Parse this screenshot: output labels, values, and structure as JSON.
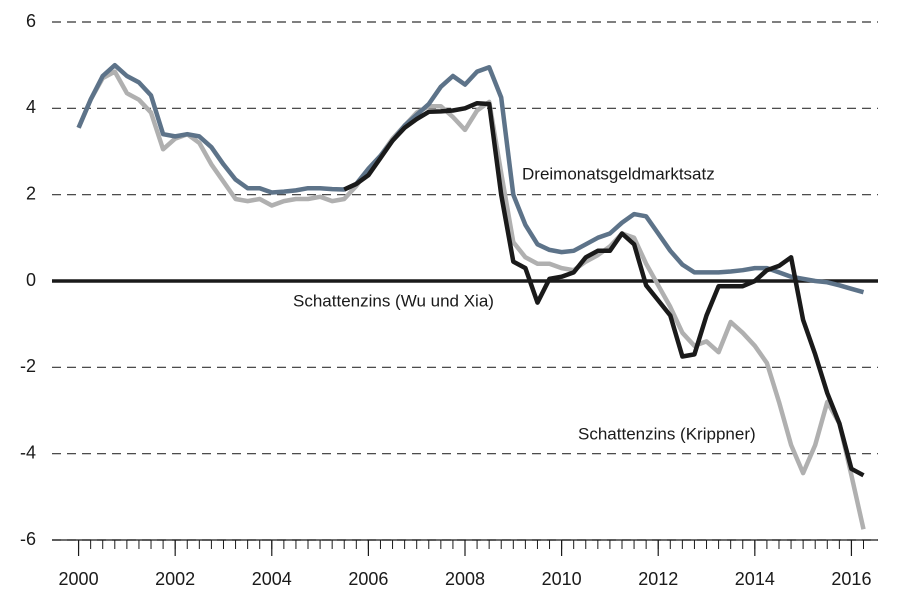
{
  "chart_data": {
    "type": "line",
    "x": [
      2000,
      2000.25,
      2000.5,
      2000.75,
      2001,
      2001.25,
      2001.5,
      2001.75,
      2002,
      2002.25,
      2002.5,
      2002.75,
      2003,
      2003.25,
      2003.5,
      2003.75,
      2004,
      2004.25,
      2004.5,
      2004.75,
      2005,
      2005.25,
      2005.5,
      2005.75,
      2006,
      2006.25,
      2006.5,
      2006.75,
      2007,
      2007.25,
      2007.5,
      2007.75,
      2008,
      2008.25,
      2008.5,
      2008.75,
      2009,
      2009.25,
      2009.5,
      2009.75,
      2010,
      2010.25,
      2010.5,
      2010.75,
      2011,
      2011.25,
      2011.5,
      2011.75,
      2012,
      2012.25,
      2012.5,
      2012.75,
      2013,
      2013.25,
      2013.5,
      2013.75,
      2014,
      2014.25,
      2014.5,
      2014.75,
      2015,
      2015.25,
      2015.5,
      2015.75,
      2016,
      2016.25
    ],
    "series": [
      {
        "name": "Schattenzins (Krippner)",
        "color": "#b0b0b0",
        "values": [
          3.55,
          4.2,
          4.7,
          4.85,
          4.35,
          4.2,
          3.9,
          3.05,
          3.3,
          3.4,
          3.2,
          2.7,
          2.3,
          1.9,
          1.85,
          1.9,
          1.75,
          1.85,
          1.9,
          1.9,
          1.95,
          1.85,
          1.9,
          2.2,
          2.6,
          2.9,
          3.3,
          3.6,
          3.9,
          4.05,
          4.05,
          3.8,
          3.5,
          3.95,
          4.15,
          2.5,
          0.9,
          0.55,
          0.4,
          0.4,
          0.3,
          0.25,
          0.45,
          0.6,
          0.8,
          1.1,
          1.0,
          0.4,
          -0.1,
          -0.6,
          -1.2,
          -1.5,
          -1.4,
          -1.65,
          -0.95,
          -1.2,
          -1.5,
          -1.9,
          -2.8,
          -3.8,
          -4.45,
          -3.8,
          -2.8,
          -3.3,
          -4.5,
          -5.75
        ]
      },
      {
        "name": "Dreimonatsgeldmarktsatz",
        "color": "#5d7389",
        "values": [
          3.55,
          4.2,
          4.75,
          5.0,
          4.75,
          4.6,
          4.3,
          3.4,
          3.35,
          3.4,
          3.35,
          3.1,
          2.7,
          2.35,
          2.15,
          2.15,
          2.05,
          2.07,
          2.1,
          2.15,
          2.15,
          2.13,
          2.12,
          2.25,
          2.6,
          2.9,
          3.25,
          3.6,
          3.85,
          4.1,
          4.5,
          4.75,
          4.55,
          4.85,
          4.95,
          4.25,
          2.0,
          1.3,
          0.85,
          0.72,
          0.67,
          0.7,
          0.85,
          1.0,
          1.1,
          1.35,
          1.55,
          1.5,
          1.1,
          0.7,
          0.38,
          0.2,
          0.2,
          0.2,
          0.22,
          0.25,
          0.3,
          0.3,
          0.2,
          0.1,
          0.05,
          0.0,
          -0.03,
          -0.1,
          -0.18,
          -0.26
        ]
      },
      {
        "name": "Schattenzins (Wu und Xia)",
        "color": "#1a1a1a",
        "values": [
          null,
          null,
          null,
          null,
          null,
          null,
          null,
          null,
          null,
          null,
          null,
          null,
          null,
          null,
          null,
          null,
          null,
          null,
          null,
          null,
          null,
          null,
          2.12,
          2.25,
          2.45,
          2.85,
          3.25,
          3.55,
          3.75,
          3.92,
          3.93,
          3.95,
          4.0,
          4.12,
          4.1,
          2.0,
          0.45,
          0.3,
          -0.5,
          0.05,
          0.1,
          0.2,
          0.55,
          0.7,
          0.7,
          1.1,
          0.85,
          -0.1,
          -0.45,
          -0.8,
          -1.75,
          -1.7,
          -0.8,
          -0.12,
          -0.12,
          -0.12,
          0.0,
          0.25,
          0.35,
          0.55,
          -0.9,
          -1.7,
          -2.6,
          -3.3,
          -4.35,
          -4.5
        ]
      }
    ],
    "xlim": [
      1999.45,
      2016.55
    ],
    "xticks": [
      2000,
      2002,
      2004,
      2006,
      2008,
      2010,
      2012,
      2014,
      2016
    ],
    "ylim": [
      -6,
      6
    ],
    "yticks": [
      6,
      4,
      2,
      0,
      -2,
      -4,
      -6
    ],
    "grid": true
  }
}
